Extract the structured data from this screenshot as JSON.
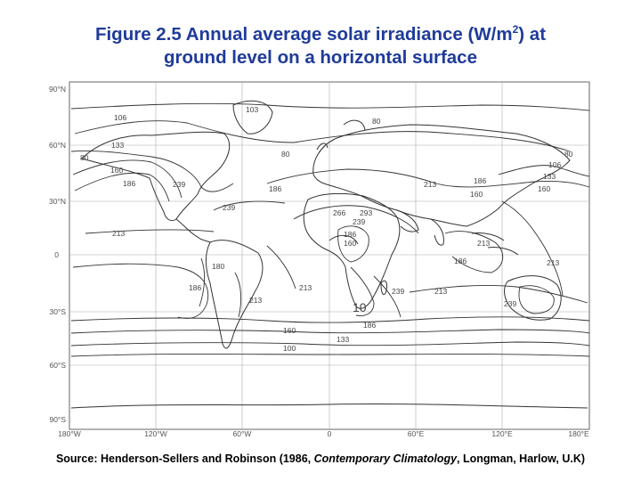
{
  "title": {
    "line1_pre": "Figure 2.5 Annual average solar irradiance (W/m",
    "line1_sup": "2",
    "line1_post": ") at",
    "line2": "ground level on a horizontal surface"
  },
  "map": {
    "lat_labels": [
      "90°N",
      "60°N",
      "30°N",
      "0",
      "30°S",
      "60°S",
      "90°S"
    ],
    "lon_labels": [
      "180°W",
      "120°W",
      "60°W",
      "0",
      "60°E",
      "120°E",
      "180°E"
    ],
    "contour_labels": [
      "103",
      "106",
      "133",
      "80",
      "80",
      "160",
      "186",
      "239",
      "80",
      "186",
      "80",
      "213",
      "186",
      "160",
      "106",
      "133",
      "160",
      "239",
      "266",
      "293",
      "239",
      "186",
      "160",
      "213",
      "213",
      "186",
      "213",
      "180",
      "186",
      "213",
      "213",
      "239",
      "186",
      "213",
      "239",
      "160",
      "133",
      "100",
      "10"
    ]
  },
  "source": {
    "prefix": "Source: Henderson-Sellers and Robinson (1986, ",
    "book": "Contemporary Climatology",
    "suffix": ", Longman, Harlow, U.K)"
  },
  "colors": {
    "title": "#1f3b9a",
    "source": "#000000",
    "map_lines": "#333333"
  }
}
